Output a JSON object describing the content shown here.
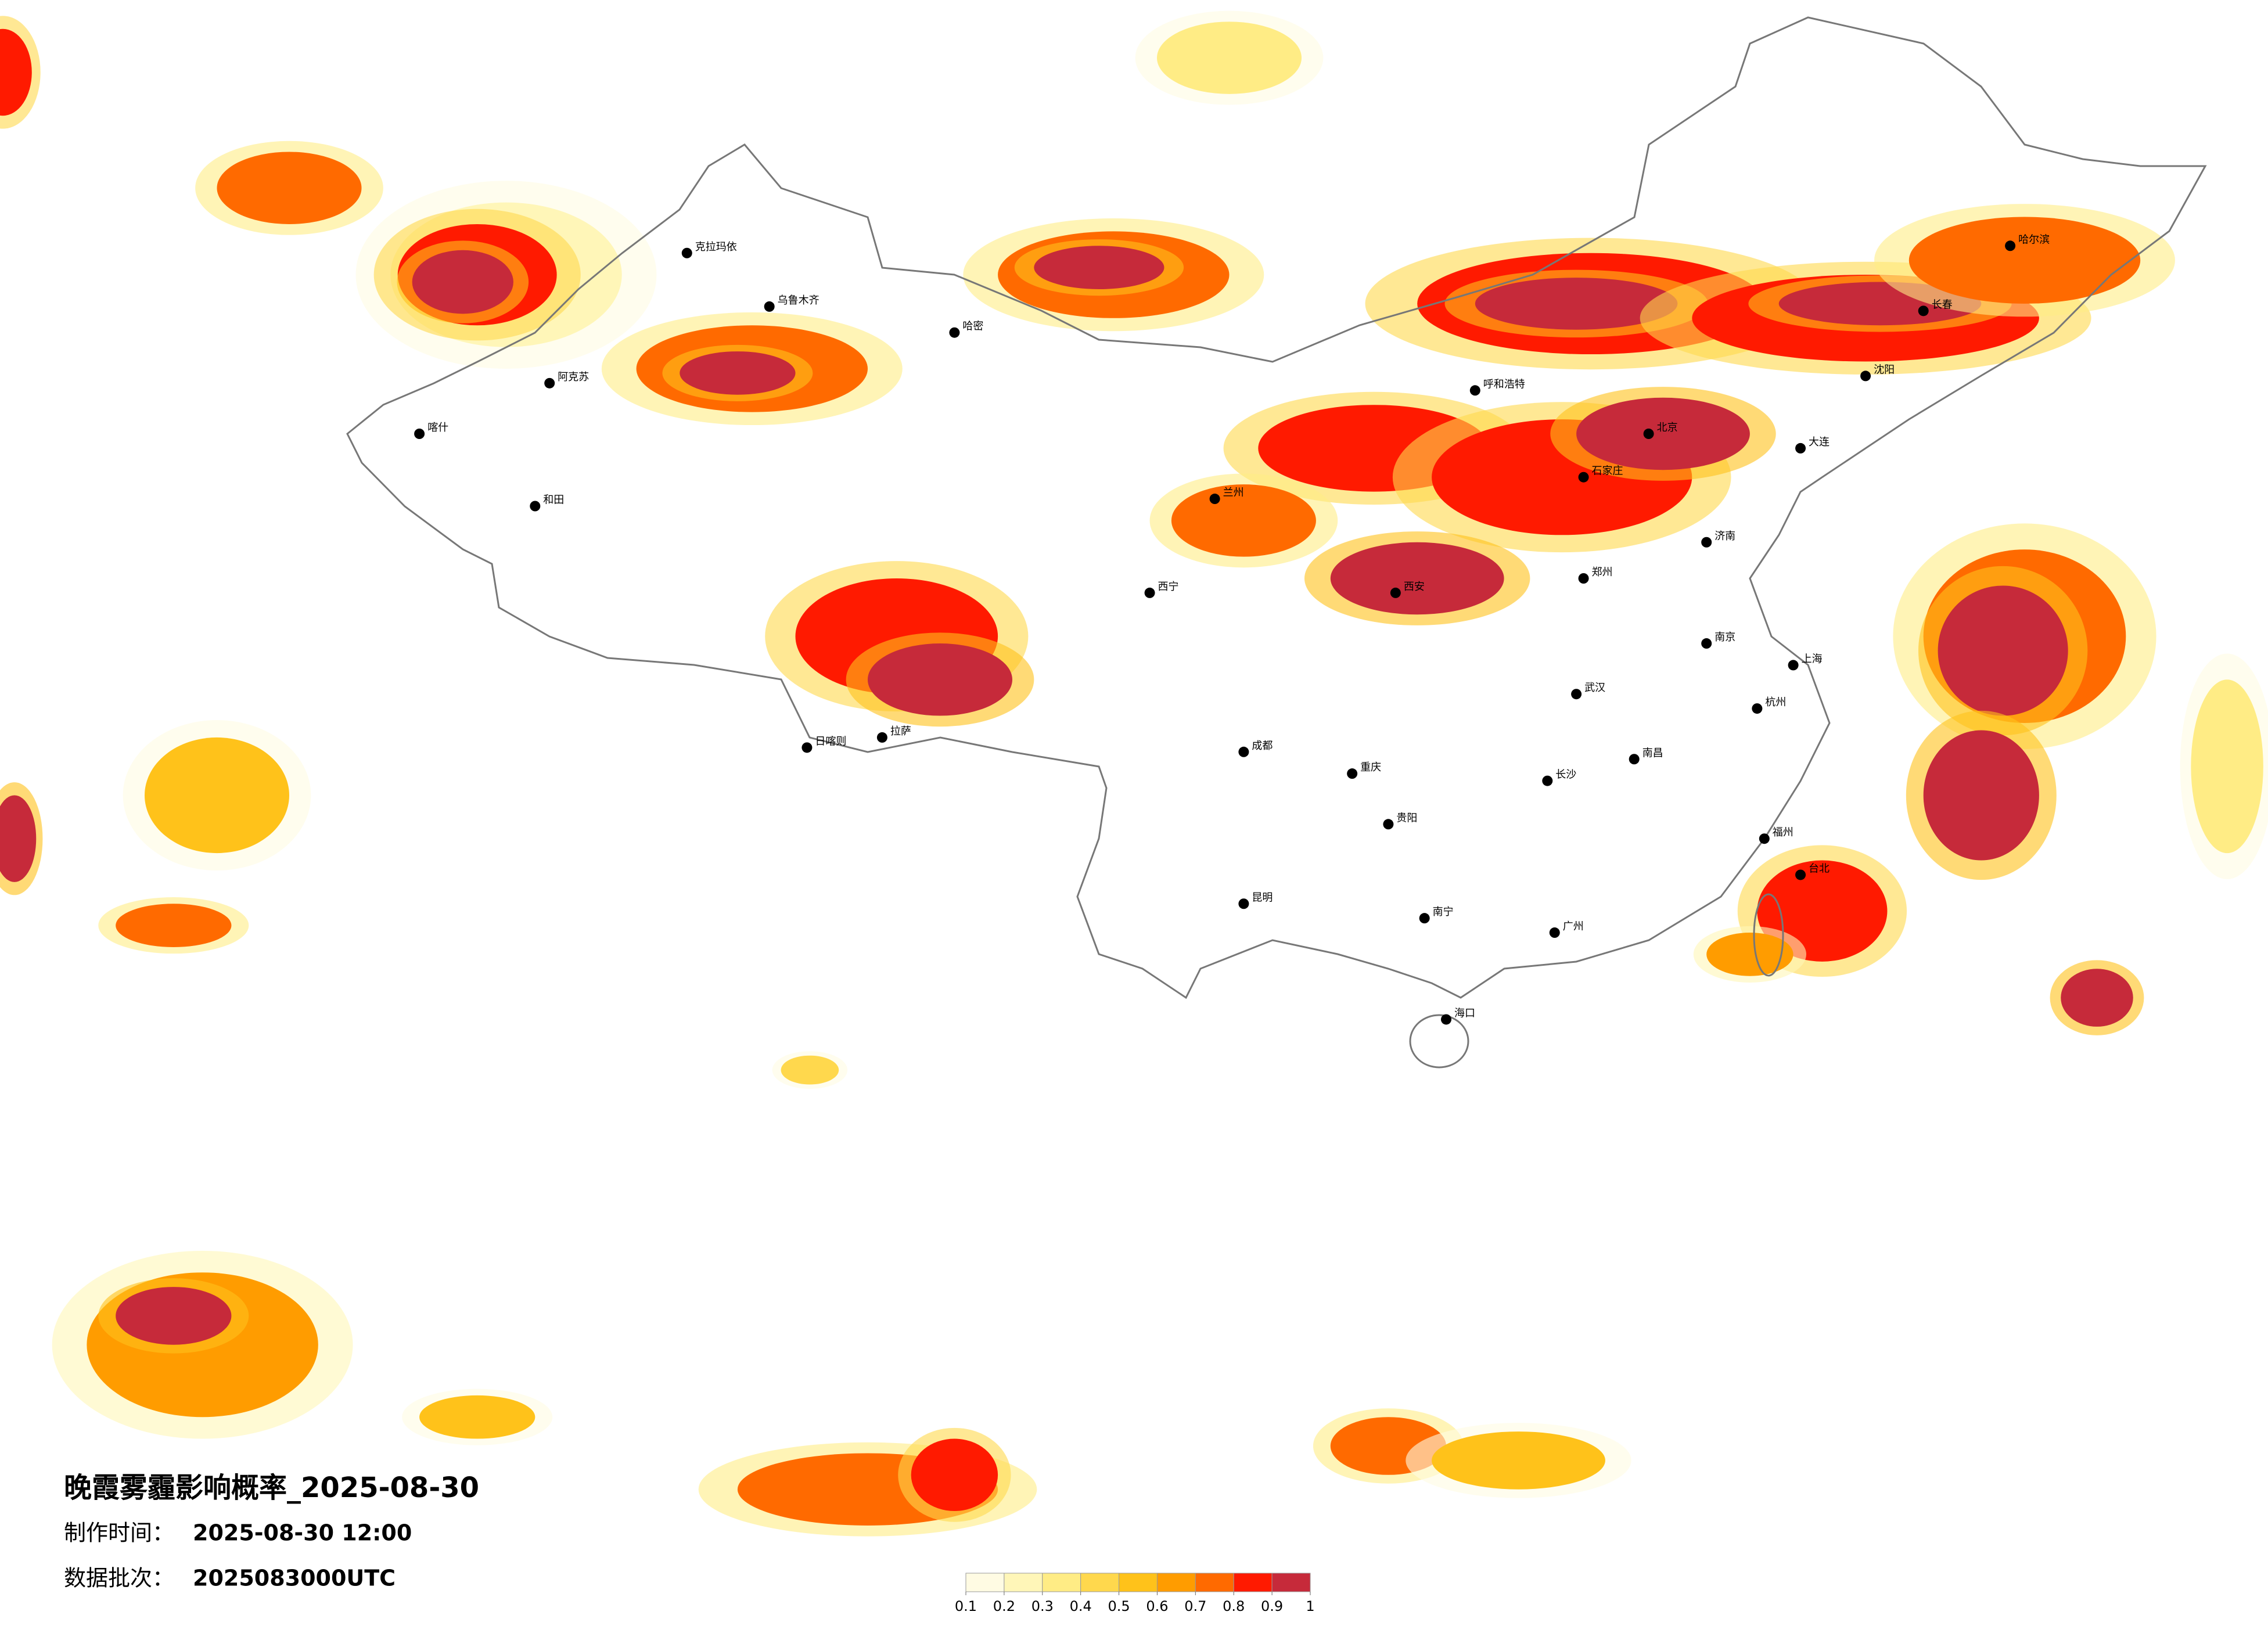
{
  "title": "晚霞雾霾影响概率_2025-08-30",
  "made_label": "制作时间：",
  "made_time": "2025-08-30 12:00",
  "batch_label": "数据批次：",
  "batch": "2025083000UTC",
  "legend": {
    "ticks": [
      0.1,
      0.2,
      0.3,
      0.4,
      0.5,
      0.6,
      0.7,
      0.8,
      0.9,
      1
    ],
    "colors": [
      "#fffbe3",
      "#fff6b8",
      "#ffec85",
      "#ffd84d",
      "#ffc21a",
      "#ff9c00",
      "#ff6a00",
      "#ff1a00",
      "#c62a3a"
    ]
  },
  "cities": [
    "克拉玛依",
    "乌鲁木齐",
    "喀什",
    "和田",
    "阿克苏",
    "哈密",
    "拉萨",
    "日喀则",
    "西宁",
    "兰州",
    "呼和浩特",
    "北京",
    "石家庄",
    "哈尔滨",
    "长春",
    "沈阳",
    "大连",
    "济南",
    "郑州",
    "西安",
    "成都",
    "重庆",
    "武汉",
    "南京",
    "上海",
    "杭州",
    "长沙",
    "南昌",
    "福州",
    "贵阳",
    "昆明",
    "南宁",
    "广州",
    "海口",
    "台北"
  ]
}
